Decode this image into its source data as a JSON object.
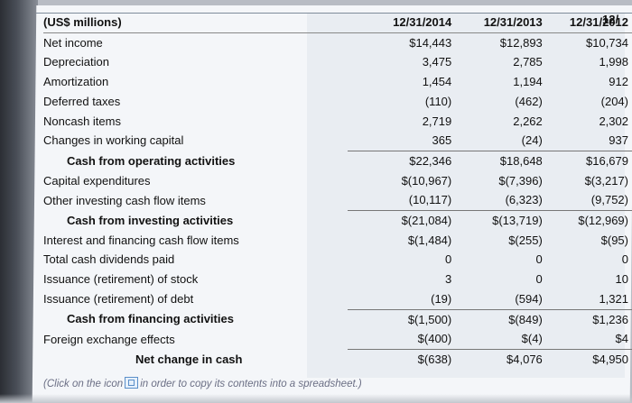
{
  "table": {
    "header": {
      "label": "(US$ millions)",
      "col1": "12/31/2014",
      "col2": "12/31/2013",
      "col3": "12/31/2012",
      "col4_partial": "12/"
    },
    "rows": [
      {
        "label": "Net income",
        "v1": "$14,443",
        "v2": "$12,893",
        "v3": "$10,734",
        "style": "normal"
      },
      {
        "label": "Depreciation",
        "v1": "3,475",
        "v2": "2,785",
        "v3": "1,998",
        "style": "normal"
      },
      {
        "label": "Amortization",
        "v1": "1,454",
        "v2": "1,194",
        "v3": "912",
        "style": "normal"
      },
      {
        "label": "Deferred taxes",
        "v1": "(110)",
        "v2": "(462)",
        "v3": "(204)",
        "style": "normal"
      },
      {
        "label": "Noncash items",
        "v1": "2,719",
        "v2": "2,262",
        "v3": "2,302",
        "style": "normal"
      },
      {
        "label": "Changes in working capital",
        "v1": "365",
        "v2": "(24)",
        "v3": "937",
        "style": "normal"
      },
      {
        "label": "Cash from operating activities",
        "v1": "$22,346",
        "v2": "$18,648",
        "v3": "$16,679",
        "style": "subtotal"
      },
      {
        "label": "Capital expenditures",
        "v1": "$(10,967)",
        "v2": "$(7,396)",
        "v3": "$(3,217)",
        "style": "normal"
      },
      {
        "label": "Other investing cash flow items",
        "v1": "(10,117)",
        "v2": "(6,323)",
        "v3": "(9,752)",
        "style": "normal"
      },
      {
        "label": "Cash from investing activities",
        "v1": "$(21,084)",
        "v2": "$(13,719)",
        "v3": "$(12,969)",
        "style": "subtotal"
      },
      {
        "label": "Interest and financing cash flow items",
        "v1": "$(1,484)",
        "v2": "$(255)",
        "v3": "$(95)",
        "style": "normal"
      },
      {
        "label": "Total cash dividends paid",
        "v1": "0",
        "v2": "0",
        "v3": "0",
        "style": "normal"
      },
      {
        "label": "Issuance (retirement) of stock",
        "v1": "3",
        "v2": "0",
        "v3": "10",
        "style": "normal"
      },
      {
        "label": "Issuance (retirement) of debt",
        "v1": "(19)",
        "v2": "(594)",
        "v3": "1,321",
        "style": "normal"
      },
      {
        "label": "Cash from financing activities",
        "v1": "$(1,500)",
        "v2": "$(849)",
        "v3": "$1,236",
        "style": "subtotal"
      },
      {
        "label": "Foreign exchange effects",
        "v1": "$(400)",
        "v2": "$(4)",
        "v3": "$4",
        "style": "normal"
      },
      {
        "label": "Net change in cash",
        "v1": "$(638)",
        "v2": "$4,076",
        "v3": "$4,950",
        "style": "net"
      }
    ]
  },
  "hint": {
    "before": "(Click on the icon",
    "after": "in order to copy its contents into a spreadsheet.)",
    "icon": "spreadsheet-copy-icon"
  }
}
